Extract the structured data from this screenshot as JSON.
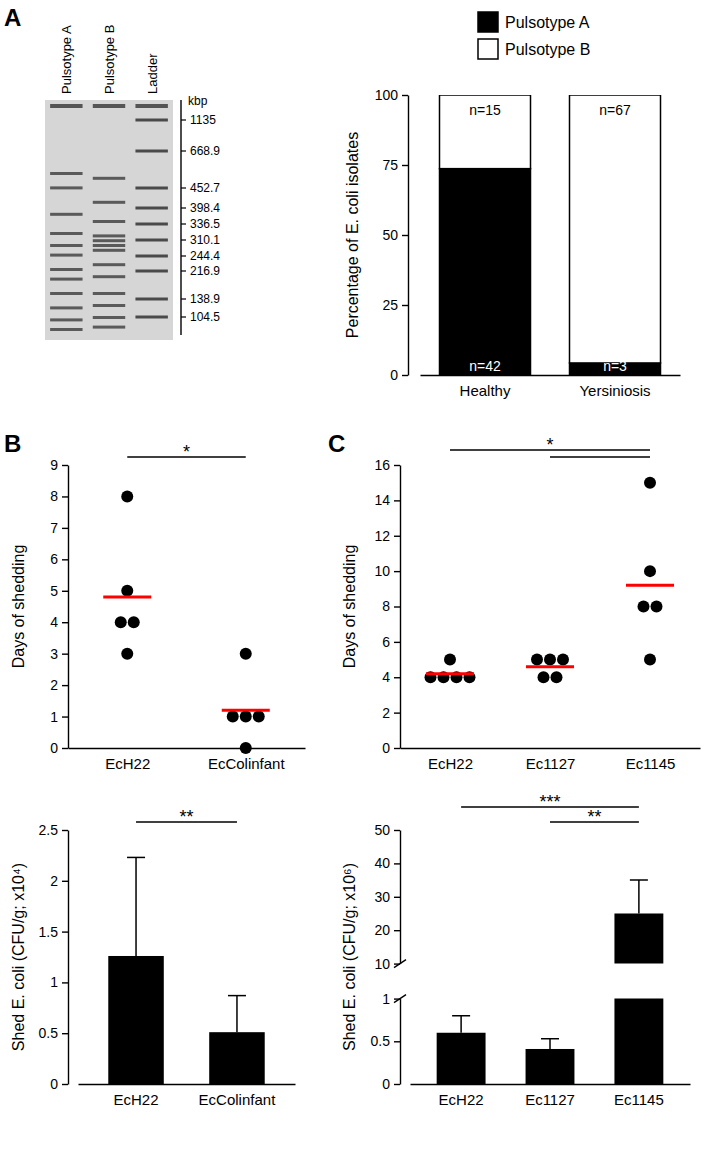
{
  "chart_data": [
    {
      "type": "image",
      "panel": "A",
      "lanes": [
        "Pulsotype A",
        "Pulsotype B",
        "Ladder"
      ],
      "ladder_unit": "kbp",
      "ladder": [
        1135,
        668.9,
        452.7,
        398.4,
        336.5,
        310.1,
        244.4,
        216.9,
        138.9,
        104.5
      ]
    },
    {
      "type": "bar",
      "stacked": true,
      "legend": "top",
      "ylabel": "Percentage of E. coli isolates",
      "categories": [
        "Healthy",
        "Yersiniosis"
      ],
      "series": [
        {
          "name": "Pulsotype A",
          "color": "#000000",
          "values": [
            73.7,
            4.3
          ],
          "labels": [
            "n=42",
            "n=3"
          ]
        },
        {
          "name": "Pulsotype B",
          "color": "#ffffff",
          "values": [
            26.3,
            95.7
          ],
          "labels": [
            "n=15",
            "n=67"
          ]
        }
      ],
      "ylim": [
        0,
        100
      ],
      "yticks": [
        0,
        25,
        50,
        75,
        100
      ]
    },
    {
      "type": "scatter",
      "panel": "B",
      "ylabel": "Days of shedding",
      "categories": [
        "EcH22",
        "EcColinfant"
      ],
      "series": [
        {
          "marker": "circle",
          "color": "#000000",
          "values": [
            [
              8,
              5,
              4,
              4,
              3
            ],
            [
              3,
              1,
              1,
              1,
              0
            ]
          ]
        },
        {
          "marker": "dash",
          "color": "#ff0000",
          "values": [
            4.8,
            1.2
          ]
        }
      ],
      "ylim": [
        0,
        9
      ],
      "yticks": [
        0,
        1,
        2,
        3,
        4,
        5,
        6,
        7,
        8,
        9
      ],
      "annotations": [
        {
          "text": "*",
          "brackets": [
            [
              0,
              1
            ]
          ]
        }
      ]
    },
    {
      "type": "scatter",
      "panel": "C",
      "ylabel": "Days of shedding",
      "categories": [
        "EcH22",
        "Ec1127",
        "Ec1145"
      ],
      "series": [
        {
          "marker": "circle",
          "color": "#000000",
          "values": [
            [
              5,
              4,
              4,
              4,
              4
            ],
            [
              5,
              5,
              5,
              4,
              4
            ],
            [
              15,
              10,
              8,
              8,
              5
            ]
          ]
        },
        {
          "marker": "dash",
          "color": "#ff0000",
          "values": [
            4.2,
            4.6,
            9.2
          ]
        }
      ],
      "ylim": [
        0,
        16
      ],
      "yticks": [
        0,
        2,
        4,
        6,
        8,
        10,
        12,
        14,
        16
      ],
      "annotations": [
        {
          "text": "*",
          "brackets": [
            [
              0,
              2
            ],
            [
              1,
              2
            ]
          ]
        }
      ]
    },
    {
      "type": "bar",
      "ylabel": "Shed E. coli (CFU/g; x10⁴)",
      "categories": [
        "EcH22",
        "EcColinfant"
      ],
      "values": [
        1.26,
        0.51
      ],
      "errors": [
        0.97,
        0.36
      ],
      "color": "#000000",
      "ylim": [
        0,
        2.5
      ],
      "yticks": [
        0,
        0.5,
        1,
        1.5,
        2,
        2.5
      ],
      "annotations": [
        {
          "text": "**",
          "brackets": [
            [
              0,
              1
            ]
          ]
        }
      ]
    },
    {
      "type": "bar",
      "ylabel": "Shed E. coli (CFU/g; x10⁶)",
      "categories": [
        "EcH22",
        "Ec1127",
        "Ec1145"
      ],
      "values": [
        0.6,
        0.41,
        25
      ],
      "errors": [
        0.2,
        0.12,
        10
      ],
      "color": "#000000",
      "segments": [
        {
          "ylim": [
            0,
            1
          ],
          "yticks": [
            0,
            0.5,
            1
          ]
        },
        {
          "ylim": [
            10,
            50
          ],
          "yticks": [
            10,
            20,
            30,
            40,
            50
          ]
        }
      ],
      "annotations": [
        {
          "text": "***",
          "brackets": [
            [
              0,
              2
            ]
          ]
        },
        {
          "text": "**",
          "brackets": [
            [
              1,
              2
            ]
          ]
        }
      ]
    }
  ]
}
